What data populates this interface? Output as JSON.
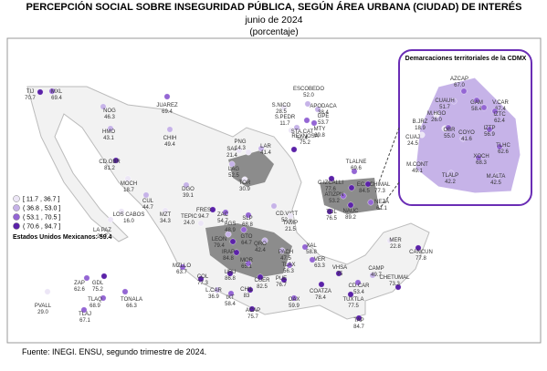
{
  "title": "PERCEPCIÓN SOCIAL SOBRE INSEGURIDAD PÚBLICA, SEGÚN ÁREA URBANA (CIUDAD) DE INTERÉS",
  "subtitle": "junio de 2024",
  "unit": "(porcentaje)",
  "legend": [
    {
      "label": "[ 11.7 , 36.7 ]",
      "max": 36.7,
      "color": "#ece6f6"
    },
    {
      "label": "( 36.8 , 53.0 ]",
      "max": 53.0,
      "color": "#c6b3e8"
    },
    {
      "label": "( 53.1 , 70.5 ]",
      "max": 70.5,
      "color": "#9466d4"
    },
    {
      "label": "( 70.6 , 94.7 ]",
      "max": 94.7,
      "color": "#5b22a8"
    }
  ],
  "national": "Estados Unidos Mexicanos: 59.4",
  "source": "Fuente: INEGI. ENSU, segundo trimestre de 2024.",
  "inset_title": "Demarcaciones territoriales de la CDMX",
  "cities": [
    {
      "name": "TIJ",
      "value": 70.7
    },
    {
      "name": "MXL",
      "value": 69.4
    },
    {
      "name": "NOG",
      "value": 46.3
    },
    {
      "name": "HMO",
      "value": 43.1
    },
    {
      "name": "JUAREZ",
      "value": 69.4
    },
    {
      "name": "CHIH",
      "value": 49.4
    },
    {
      "name": "CD.OBR",
      "value": 81.2
    },
    {
      "name": "MOCH",
      "value": 18.7
    },
    {
      "name": "CUL",
      "value": 44.7
    },
    {
      "name": "LA PAZ",
      "value": 24.7
    },
    {
      "name": "LOS CABOS",
      "value": 16,
      "label": "16.0"
    },
    {
      "name": "DGO",
      "value": 39.1
    },
    {
      "name": "MZT",
      "value": 34.3
    },
    {
      "name": "TEPIC",
      "value": 24,
      "label": "24.0"
    },
    {
      "name": "LAG",
      "value": 52.5
    },
    {
      "name": "TOR",
      "value": 30.9
    },
    {
      "name": "SAL",
      "value": 21.4
    },
    {
      "name": "PNG",
      "value": 14.3
    },
    {
      "name": "LAR",
      "value": 41.4
    },
    {
      "name": "ESCOBEDO",
      "value": 52,
      "label": "52.0"
    },
    {
      "name": "S.NICO",
      "value": 28.5
    },
    {
      "name": "APODACA",
      "value": 38.4
    },
    {
      "name": "S.PEDR",
      "value": 11.7
    },
    {
      "name": "GPE",
      "value": 53.7
    },
    {
      "name": "STA.CAT",
      "value": 50.4
    },
    {
      "name": "MTY",
      "value": 69.8
    },
    {
      "name": "REYNOSA",
      "value": 75.2
    },
    {
      "name": "CD.VICT",
      "value": 52.6
    },
    {
      "name": "TAMP",
      "value": 21.5
    },
    {
      "name": "ZAC",
      "value": 54.7
    },
    {
      "name": "FRES",
      "value": 94.7
    },
    {
      "name": "AGS",
      "value": 48.9
    },
    {
      "name": "SLP",
      "value": 68.8
    },
    {
      "name": "LEON",
      "value": 79.4
    },
    {
      "name": "GTO",
      "value": 64.7
    },
    {
      "name": "IRAP",
      "value": 84.8
    },
    {
      "name": "QRO",
      "value": 42.4
    },
    {
      "name": "MZLLO",
      "value": 63.7
    },
    {
      "name": "COL",
      "value": 77.3
    },
    {
      "name": "URU",
      "value": 86.8
    },
    {
      "name": "MOR",
      "value": 65.1
    },
    {
      "name": "PACH",
      "value": 47.5
    },
    {
      "name": "TLAX",
      "value": 56.3
    },
    {
      "name": "XAL",
      "value": 58.8
    },
    {
      "name": "VER",
      "value": 63.3
    },
    {
      "name": "PUE",
      "value": 76.7
    },
    {
      "name": "CUER",
      "value": 82.5
    },
    {
      "name": "L.CAR",
      "value": 36.9
    },
    {
      "name": "IXT",
      "value": 58.4
    },
    {
      "name": "CHIL",
      "value": 83.0
    },
    {
      "name": "ACAP",
      "value": 75.7
    },
    {
      "name": "OAX",
      "value": 59.9
    },
    {
      "name": "COATZA",
      "value": 78.4
    },
    {
      "name": "VHSA",
      "value": 75.0
    },
    {
      "name": "CD.CAR",
      "value": 53.4
    },
    {
      "name": "CAMP",
      "value": 49.7
    },
    {
      "name": "MER",
      "value": 22.8
    },
    {
      "name": "CANCUN",
      "value": 77.8
    },
    {
      "name": "CHETUMAL",
      "value": 73.3
    },
    {
      "name": "TUXTLA",
      "value": 77.5
    },
    {
      "name": "TAP",
      "value": 84.7
    },
    {
      "name": "ZAP",
      "value": 62.6
    },
    {
      "name": "GDL",
      "value": 75.2
    },
    {
      "name": "TLAQ",
      "value": 68.9
    },
    {
      "name": "TONALA",
      "value": 66.3
    },
    {
      "name": "TLAJ",
      "value": 67.1
    },
    {
      "name": "PVALL",
      "value": 29,
      "label": "29.0"
    },
    {
      "name": "C.IZCALLI",
      "value": 77.6
    },
    {
      "name": "TLALNE",
      "value": 69.6
    },
    {
      "name": "ECAP",
      "value": 84.5
    },
    {
      "name": "ATIZPN",
      "value": 53.2
    },
    {
      "name": "CHIMAL",
      "value": 77.3
    },
    {
      "name": "NEZA",
      "value": 61.1
    },
    {
      "name": "TOL",
      "value": 76.5
    },
    {
      "name": "NAUC",
      "value": 89.2
    }
  ],
  "cdmx": [
    {
      "name": "AZCAP",
      "value": 67,
      "label": "67.0"
    },
    {
      "name": "CUAUH",
      "value": 51.7
    },
    {
      "name": "M.HGO",
      "value": 26,
      "label": "26.0"
    },
    {
      "name": "GAM",
      "value": 58.4
    },
    {
      "name": "B.JRZ",
      "value": 18.9
    },
    {
      "name": "V.CAR",
      "value": 67.4
    },
    {
      "name": "IZTC",
      "value": 62.4
    },
    {
      "name": "CUAJ",
      "value": 24.5
    },
    {
      "name": "OBR",
      "value": 55,
      "label": "55.0"
    },
    {
      "name": "COYO",
      "value": 41.6
    },
    {
      "name": "IZTP",
      "value": 56.9
    },
    {
      "name": "TLHC",
      "value": 62.6
    },
    {
      "name": "M.CONT",
      "value": 49.1
    },
    {
      "name": "XOCH",
      "value": 68.3
    },
    {
      "name": "TLALP",
      "value": 42.2
    },
    {
      "name": "M.ALTA",
      "value": 42.5
    }
  ]
}
